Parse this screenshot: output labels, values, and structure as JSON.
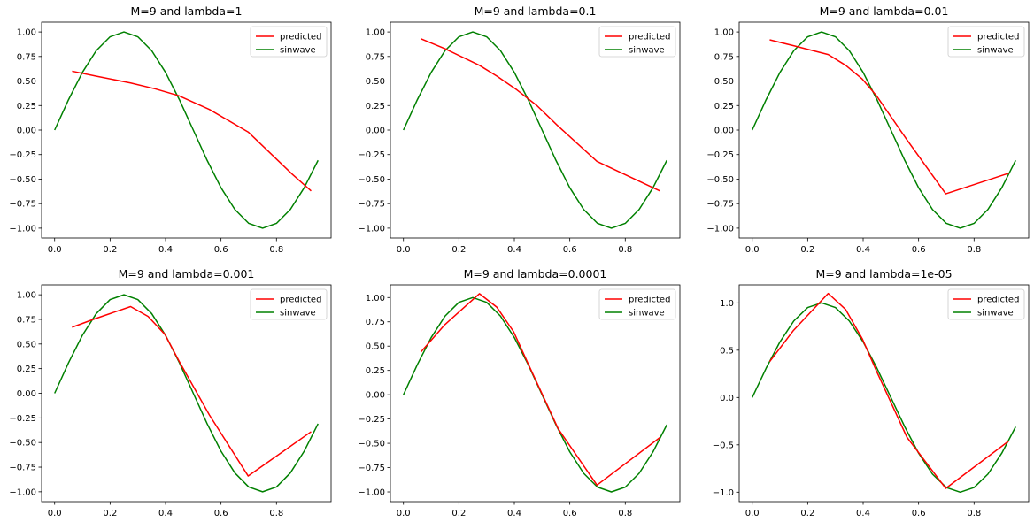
{
  "colors": {
    "predicted": "#ff0000",
    "sinwave": "#008000",
    "axes": "#000000",
    "legend_border": "#cccccc"
  },
  "chart_data": [
    {
      "type": "line",
      "title": "M=9 and lambda=1",
      "xlim": [
        -0.047,
        0.997
      ],
      "ylim": [
        -1.1,
        1.1
      ],
      "xticks": [
        0.0,
        0.2,
        0.4,
        0.6,
        0.8
      ],
      "xtick_labels": [
        "0.0",
        "0.2",
        "0.4",
        "0.6",
        "0.8"
      ],
      "yticks": [
        1.0,
        0.75,
        0.5,
        0.25,
        0.0,
        -0.25,
        -0.5,
        -0.75,
        -1.0
      ],
      "ytick_labels": [
        "1.00",
        "0.75",
        "0.50",
        "0.25",
        "0.00",
        "−0.25",
        "−0.50",
        "−0.75",
        "−1.00"
      ],
      "legend": "top-right",
      "series": [
        {
          "name": "predicted",
          "color": "#ff0000",
          "x": [
            0.063,
            0.149,
            0.274,
            0.363,
            0.448,
            0.558,
            0.698,
            0.857,
            0.925
          ],
          "y": [
            0.6,
            0.55,
            0.48,
            0.42,
            0.35,
            0.21,
            -0.02,
            -0.45,
            -0.62
          ]
        },
        {
          "name": "sinwave",
          "color": "#008000",
          "x": [
            0.0,
            0.05,
            0.1,
            0.15,
            0.2,
            0.25,
            0.3,
            0.35,
            0.4,
            0.45,
            0.5,
            0.55,
            0.6,
            0.65,
            0.7,
            0.75,
            0.8,
            0.85,
            0.9,
            0.95
          ],
          "y": [
            0.0,
            0.309,
            0.588,
            0.809,
            0.951,
            1.0,
            0.951,
            0.809,
            0.588,
            0.309,
            0.0,
            -0.309,
            -0.588,
            -0.809,
            -0.951,
            -1.0,
            -0.951,
            -0.809,
            -0.588,
            -0.309
          ]
        }
      ]
    },
    {
      "type": "line",
      "title": "M=9 and lambda=0.1",
      "xlim": [
        -0.047,
        0.997
      ],
      "ylim": [
        -1.1,
        1.1
      ],
      "xticks": [
        0.0,
        0.2,
        0.4,
        0.6,
        0.8
      ],
      "xtick_labels": [
        "0.0",
        "0.2",
        "0.4",
        "0.6",
        "0.8"
      ],
      "yticks": [
        1.0,
        0.75,
        0.5,
        0.25,
        0.0,
        -0.25,
        -0.5,
        -0.75,
        -1.0
      ],
      "ytick_labels": [
        "1.00",
        "0.75",
        "0.50",
        "0.25",
        "0.00",
        "−0.25",
        "−0.50",
        "−0.75",
        "−1.00"
      ],
      "legend": "top-right",
      "series": [
        {
          "name": "predicted",
          "color": "#ff0000",
          "x": [
            0.063,
            0.149,
            0.274,
            0.337,
            0.409,
            0.481,
            0.558,
            0.698,
            0.925
          ],
          "y": [
            0.93,
            0.83,
            0.66,
            0.55,
            0.41,
            0.25,
            0.04,
            -0.32,
            -0.62
          ]
        },
        {
          "name": "sinwave",
          "color": "#008000",
          "x": [
            0.0,
            0.05,
            0.1,
            0.15,
            0.2,
            0.25,
            0.3,
            0.35,
            0.4,
            0.45,
            0.5,
            0.55,
            0.6,
            0.65,
            0.7,
            0.75,
            0.8,
            0.85,
            0.9,
            0.95
          ],
          "y": [
            0.0,
            0.309,
            0.588,
            0.809,
            0.951,
            1.0,
            0.951,
            0.809,
            0.588,
            0.309,
            0.0,
            -0.309,
            -0.588,
            -0.809,
            -0.951,
            -1.0,
            -0.951,
            -0.809,
            -0.588,
            -0.309
          ]
        }
      ]
    },
    {
      "type": "line",
      "title": "M=9 and lambda=0.01",
      "xlim": [
        -0.047,
        0.997
      ],
      "ylim": [
        -1.1,
        1.1
      ],
      "xticks": [
        0.0,
        0.2,
        0.4,
        0.6,
        0.8
      ],
      "xtick_labels": [
        "0.0",
        "0.2",
        "0.4",
        "0.6",
        "0.8"
      ],
      "yticks": [
        1.0,
        0.75,
        0.5,
        0.25,
        0.0,
        -0.25,
        -0.5,
        -0.75,
        -1.0
      ],
      "ytick_labels": [
        "1.00",
        "0.75",
        "0.50",
        "0.25",
        "0.00",
        "−0.25",
        "−0.50",
        "−0.75",
        "−1.00"
      ],
      "legend": "top-right",
      "series": [
        {
          "name": "predicted",
          "color": "#ff0000",
          "x": [
            0.063,
            0.149,
            0.274,
            0.337,
            0.397,
            0.448,
            0.558,
            0.698,
            0.925
          ],
          "y": [
            0.92,
            0.86,
            0.77,
            0.66,
            0.52,
            0.35,
            -0.1,
            -0.65,
            -0.44
          ]
        },
        {
          "name": "sinwave",
          "color": "#008000",
          "x": [
            0.0,
            0.05,
            0.1,
            0.15,
            0.2,
            0.25,
            0.3,
            0.35,
            0.4,
            0.45,
            0.5,
            0.55,
            0.6,
            0.65,
            0.7,
            0.75,
            0.8,
            0.85,
            0.9,
            0.95
          ],
          "y": [
            0.0,
            0.309,
            0.588,
            0.809,
            0.951,
            1.0,
            0.951,
            0.809,
            0.588,
            0.309,
            0.0,
            -0.309,
            -0.588,
            -0.809,
            -0.951,
            -1.0,
            -0.951,
            -0.809,
            -0.588,
            -0.309
          ]
        }
      ]
    },
    {
      "type": "line",
      "title": "M=9 and lambda=0.001",
      "xlim": [
        -0.047,
        0.997
      ],
      "ylim": [
        -1.1,
        1.1
      ],
      "xticks": [
        0.0,
        0.2,
        0.4,
        0.6,
        0.8
      ],
      "xtick_labels": [
        "0.0",
        "0.2",
        "0.4",
        "0.6",
        "0.8"
      ],
      "yticks": [
        1.0,
        0.75,
        0.5,
        0.25,
        0.0,
        -0.25,
        -0.5,
        -0.75,
        -1.0
      ],
      "ytick_labels": [
        "1.00",
        "0.75",
        "0.50",
        "0.25",
        "0.00",
        "−0.25",
        "−0.50",
        "−0.75",
        "−1.00"
      ],
      "legend": "top-right",
      "series": [
        {
          "name": "predicted",
          "color": "#ff0000",
          "x": [
            0.063,
            0.149,
            0.274,
            0.337,
            0.397,
            0.448,
            0.558,
            0.698,
            0.925
          ],
          "y": [
            0.67,
            0.76,
            0.88,
            0.78,
            0.6,
            0.33,
            -0.22,
            -0.84,
            -0.39
          ]
        },
        {
          "name": "sinwave",
          "color": "#008000",
          "x": [
            0.0,
            0.05,
            0.1,
            0.15,
            0.2,
            0.25,
            0.3,
            0.35,
            0.4,
            0.45,
            0.5,
            0.55,
            0.6,
            0.65,
            0.7,
            0.75,
            0.8,
            0.85,
            0.9,
            0.95
          ],
          "y": [
            0.0,
            0.309,
            0.588,
            0.809,
            0.951,
            1.0,
            0.951,
            0.809,
            0.588,
            0.309,
            0.0,
            -0.309,
            -0.588,
            -0.809,
            -0.951,
            -1.0,
            -0.951,
            -0.809,
            -0.588,
            -0.309
          ]
        }
      ]
    },
    {
      "type": "line",
      "title": "M=9 and lambda=0.0001",
      "xlim": [
        -0.047,
        0.997
      ],
      "ylim": [
        -1.1,
        1.13
      ],
      "xticks": [
        0.0,
        0.2,
        0.4,
        0.6,
        0.8
      ],
      "xtick_labels": [
        "0.0",
        "0.2",
        "0.4",
        "0.6",
        "0.8"
      ],
      "yticks": [
        1.0,
        0.75,
        0.5,
        0.25,
        0.0,
        -0.25,
        -0.5,
        -0.75,
        -1.0
      ],
      "ytick_labels": [
        "1.00",
        "0.75",
        "0.50",
        "0.25",
        "0.00",
        "−0.25",
        "−0.50",
        "−0.75",
        "−1.00"
      ],
      "legend": "top-right",
      "series": [
        {
          "name": "predicted",
          "color": "#ff0000",
          "x": [
            0.063,
            0.149,
            0.274,
            0.337,
            0.397,
            0.448,
            0.558,
            0.698,
            0.925
          ],
          "y": [
            0.44,
            0.72,
            1.04,
            0.9,
            0.65,
            0.33,
            -0.35,
            -0.93,
            -0.44
          ]
        },
        {
          "name": "sinwave",
          "color": "#008000",
          "x": [
            0.0,
            0.05,
            0.1,
            0.15,
            0.2,
            0.25,
            0.3,
            0.35,
            0.4,
            0.45,
            0.5,
            0.55,
            0.6,
            0.65,
            0.7,
            0.75,
            0.8,
            0.85,
            0.9,
            0.95
          ],
          "y": [
            0.0,
            0.309,
            0.588,
            0.809,
            0.951,
            1.0,
            0.951,
            0.809,
            0.588,
            0.309,
            0.0,
            -0.309,
            -0.588,
            -0.809,
            -0.951,
            -1.0,
            -0.951,
            -0.809,
            -0.588,
            -0.309
          ]
        }
      ]
    },
    {
      "type": "line",
      "title": "M=9 and lambda=1e-05",
      "xlim": [
        -0.047,
        0.997
      ],
      "ylim": [
        -1.1,
        1.19
      ],
      "xticks": [
        0.0,
        0.2,
        0.4,
        0.6,
        0.8
      ],
      "xtick_labels": [
        "0.0",
        "0.2",
        "0.4",
        "0.6",
        "0.8"
      ],
      "yticks": [
        1.0,
        0.5,
        0.0,
        -0.5,
        -1.0
      ],
      "ytick_labels": [
        "1.0",
        "0.5",
        "0.0",
        "−0.5",
        "−1.0"
      ],
      "legend": "top-right",
      "series": [
        {
          "name": "predicted",
          "color": "#ff0000",
          "x": [
            0.063,
            0.149,
            0.274,
            0.337,
            0.397,
            0.448,
            0.558,
            0.698,
            0.925
          ],
          "y": [
            0.38,
            0.71,
            1.1,
            0.93,
            0.62,
            0.28,
            -0.42,
            -0.96,
            -0.46
          ]
        },
        {
          "name": "sinwave",
          "color": "#008000",
          "x": [
            0.0,
            0.05,
            0.1,
            0.15,
            0.2,
            0.25,
            0.3,
            0.35,
            0.4,
            0.45,
            0.5,
            0.55,
            0.6,
            0.65,
            0.7,
            0.75,
            0.8,
            0.85,
            0.9,
            0.95
          ],
          "y": [
            0.0,
            0.309,
            0.588,
            0.809,
            0.951,
            1.0,
            0.951,
            0.809,
            0.588,
            0.309,
            0.0,
            -0.309,
            -0.588,
            -0.809,
            -0.951,
            -1.0,
            -0.951,
            -0.809,
            -0.588,
            -0.309
          ]
        }
      ]
    }
  ]
}
